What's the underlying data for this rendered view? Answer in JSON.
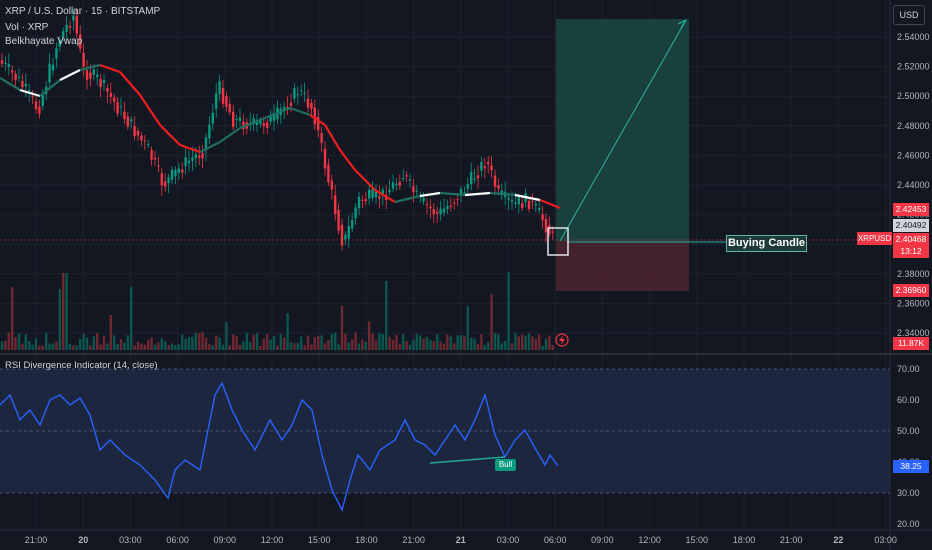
{
  "header": {
    "title": "XRP / U.S. Dollar · 15 · BITSTAMP",
    "indicator1": "Vol · XRP",
    "indicator2": "Belkhayate Vwap"
  },
  "currency_button": "USD",
  "price_axis": {
    "ticks": [
      "2.54000",
      "2.52000",
      "2.50000",
      "2.48000",
      "2.46000",
      "2.44000",
      "2.42000",
      "2.40000",
      "2.38000",
      "2.36000",
      "2.34000"
    ]
  },
  "price_tags": {
    "upper": "2.42453",
    "mid": "2.40492",
    "current": "2.40468",
    "countdown": "13:12",
    "lower": "2.36960",
    "volume": "11.87K"
  },
  "symbol_tag": "XRPUSD",
  "annotations": {
    "buying_candle": "Buying Candle",
    "bull": "Bull"
  },
  "rsi": {
    "title": "RSI Divergence Indicator (14, close)",
    "ticks": [
      "70.00",
      "60.00",
      "50.00",
      "40.00",
      "30.00",
      "20.00"
    ],
    "value": "38.25"
  },
  "time_axis": {
    "ticks": [
      "21:00",
      "20",
      "03:00",
      "06:00",
      "09:00",
      "12:00",
      "15:00",
      "18:00",
      "21:00",
      "21",
      "03:00",
      "06:00",
      "09:00",
      "12:00",
      "15:00",
      "18:00",
      "21:00",
      "22",
      "03:00"
    ]
  },
  "colors": {
    "background": "#131722",
    "up": "#089981",
    "down": "#f23645",
    "rsi_line": "#2962ff",
    "rsi_band": "#1f2943",
    "target_zone": "#1b4540",
    "stop_zone": "#4a2330"
  },
  "icons": {
    "alert": "lightning-alert-icon"
  }
}
